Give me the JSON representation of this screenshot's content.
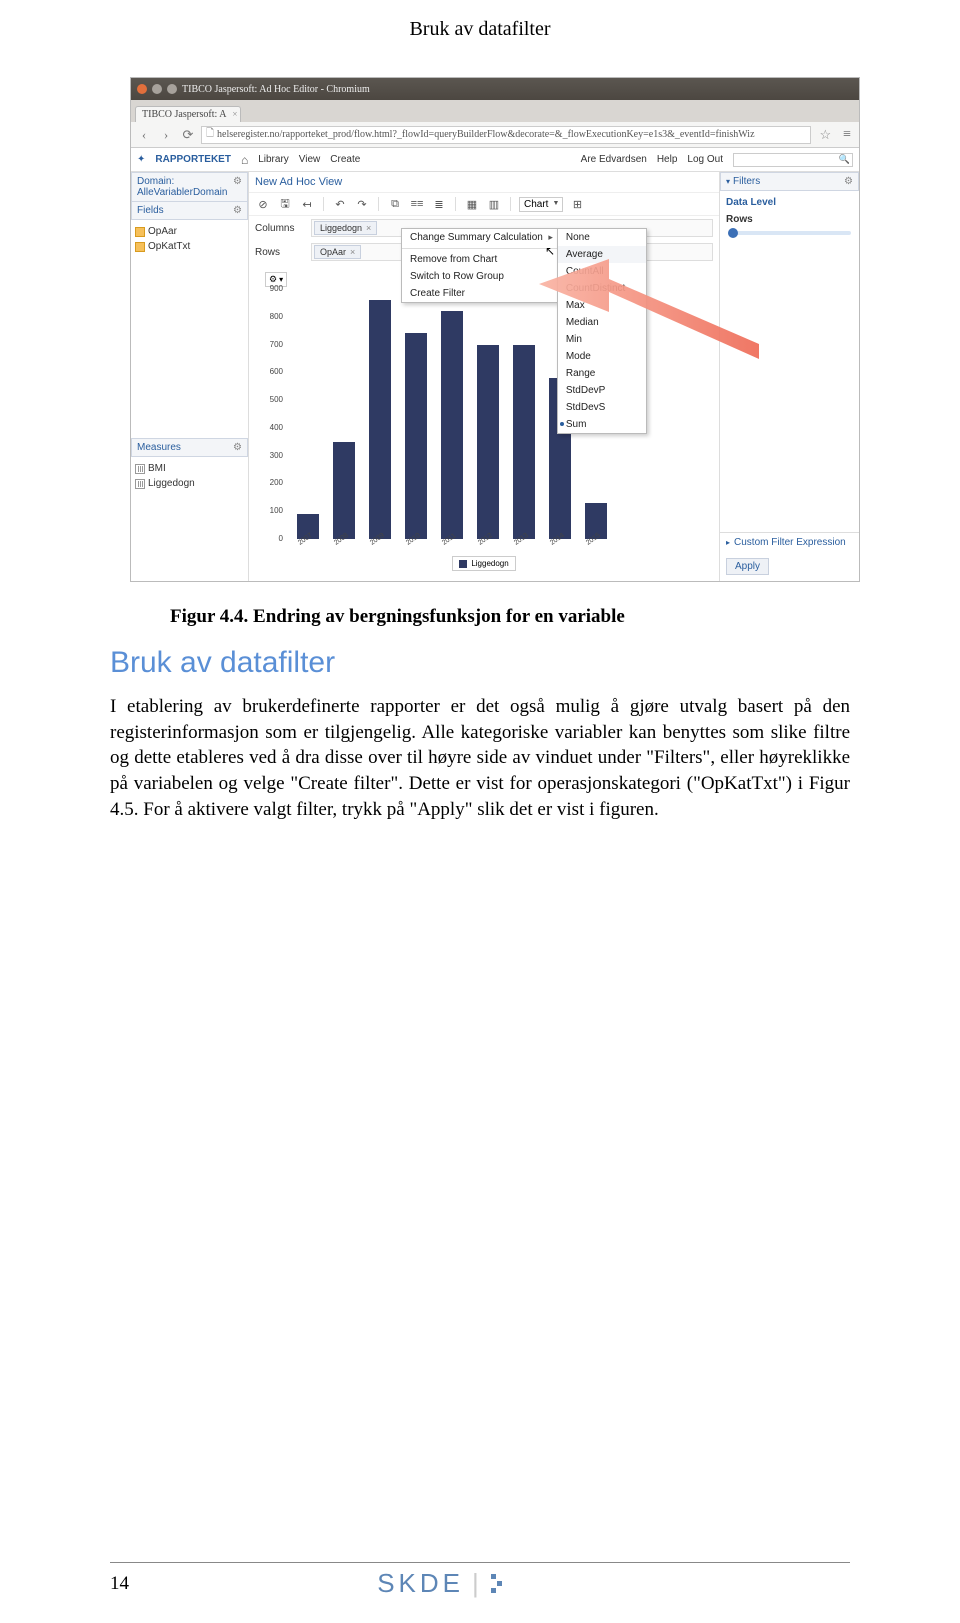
{
  "header": {
    "title": "Bruk av datafilter"
  },
  "browser": {
    "window_title": "TIBCO Jaspersoft: Ad Hoc Editor - Chromium",
    "tab_label": "TIBCO Jaspersoft: A",
    "url": "helseregister.no/rapporteket_prod/flow.html?_flowId=queryBuilderFlow&decorate=&_flowExecutionKey=e1s3&_eventId=finishWiz",
    "window_buttons": {
      "close": "#e26f3c",
      "min": "#a7a29c",
      "max": "#a7a29c"
    }
  },
  "app": {
    "brand": "RAPPORTEKET",
    "menu": [
      "Library",
      "View",
      "Create"
    ],
    "user": "Are Edvardsen",
    "links": [
      "Help",
      "Log Out"
    ],
    "home_icon": "⌂"
  },
  "left": {
    "domain_label": "Domain: AlleVariablerDomain",
    "fields_label": "Fields",
    "fields": [
      "OpAar",
      "OpKatTxt"
    ],
    "measures_label": "Measures",
    "measures": [
      "BMI",
      "Liggedogn"
    ]
  },
  "center": {
    "title": "New Ad Hoc View",
    "toolbar_icons": [
      "⊘",
      "🖫",
      "↤",
      "↶",
      "↷",
      "⧉",
      "≡≡",
      "≣",
      "▦",
      "▥"
    ],
    "chart_type": "Chart",
    "columns_label": "Columns",
    "columns_chip": "Liggedogn",
    "rows_label": "Rows",
    "rows_chip": "OpAar",
    "ctx1": [
      "Change Summary Calculation",
      "Remove from Chart",
      "Switch to Row Group",
      "Create Filter"
    ],
    "ctx2": [
      "None",
      "Average",
      "CountAll",
      "CountDistinct",
      "Max",
      "Median",
      "Min",
      "Mode",
      "Range",
      "StdDevP",
      "StdDevS",
      "Sum"
    ],
    "yticks": [
      0,
      100,
      200,
      300,
      400,
      500,
      600,
      700,
      800,
      900
    ],
    "bars": [
      {
        "x": "2007",
        "v": 90
      },
      {
        "x": "2008",
        "v": 350
      },
      {
        "x": "2009",
        "v": 860
      },
      {
        "x": "2010",
        "v": 740
      },
      {
        "x": "2011",
        "v": 820
      },
      {
        "x": "2012",
        "v": 700
      },
      {
        "x": "2013",
        "v": 700
      },
      {
        "x": "2014",
        "v": 580
      },
      {
        "x": "2015",
        "v": 130
      }
    ],
    "legend": "Liggedogn",
    "bar_color": "#2f3a63"
  },
  "right": {
    "filters_label": "Filters",
    "data_level_label": "Data Level",
    "rows_label": "Rows",
    "cfe_label": "Custom Filter Expression",
    "apply_label": "Apply"
  },
  "arrow_color": "#f07a6a",
  "caption": "Figur 4.4. Endring av bergningsfunksjon for en variable",
  "section_heading": "Bruk av datafilter",
  "body": "I etablering av brukerdefinerte rapporter er det også mulig å gjøre utvalg basert på den registerinformasjon som er tilgjengelig. Alle kategoriske variabler kan benyttes som slike filtre og dette etableres ved å dra disse over til høyre side av vinduet under \"Filters\", eller høyreklikke på variabelen og velge \"Create filter\". Dette er vist for operasjonskategori (\"OpKatTxt\") i Figur 4.5. For å aktivere valgt filter, trykk på \"Apply\" slik det er vist i figuren.",
  "footer": {
    "page": "14",
    "logo": "SKDE"
  }
}
